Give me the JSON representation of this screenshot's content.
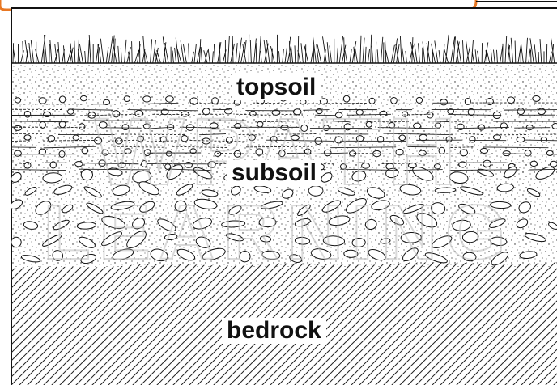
{
  "diagram": {
    "layers": [
      {
        "id": "topsoil",
        "label": "topsoil"
      },
      {
        "id": "subsoil",
        "label": "subsoil"
      },
      {
        "id": "bedrock",
        "label": "bedrock"
      }
    ],
    "colors": {
      "ink": "#111111",
      "background": "#ffffff",
      "header_accent": "#e87722",
      "watermark": "#cfcfcf"
    },
    "icons": [
      "grass-strip-icon",
      "watermark-logo"
    ],
    "watermark_text": "WP ATH LEARNING"
  }
}
